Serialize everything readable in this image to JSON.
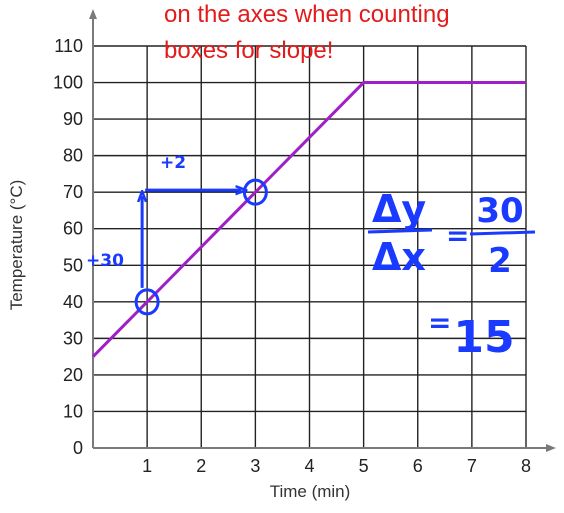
{
  "chart_data": {
    "type": "line",
    "title": "",
    "xlabel": "Time (min)",
    "ylabel": "Temperature (°C)",
    "xlim": [
      0,
      8
    ],
    "ylim": [
      0,
      110
    ],
    "x_ticks": [
      "1",
      "2",
      "3",
      "4",
      "5",
      "6",
      "7",
      "8"
    ],
    "y_ticks": [
      "0",
      "10",
      "20",
      "30",
      "40",
      "50",
      "60",
      "70",
      "80",
      "90",
      "100",
      "110"
    ],
    "grid": true,
    "series": [
      {
        "x": [
          0,
          5,
          8
        ],
        "y": [
          25,
          100,
          100
        ],
        "color": "#a020c8"
      }
    ],
    "annotations": {
      "note_line1": "on the axes when counting",
      "note_line2": "boxes for slope!",
      "note_color": "#e21b1b",
      "ink_color": "#1a3bff",
      "marked_points": [
        {
          "x": 1,
          "y": 40
        },
        {
          "x": 3,
          "y": 70
        }
      ],
      "rise_label": "+30",
      "run_label": "+2",
      "slope_dy": "Δy",
      "slope_dx": "Δx",
      "slope_equals": "=",
      "slope_num": "30",
      "slope_den": "2",
      "slope_result": "15"
    }
  }
}
